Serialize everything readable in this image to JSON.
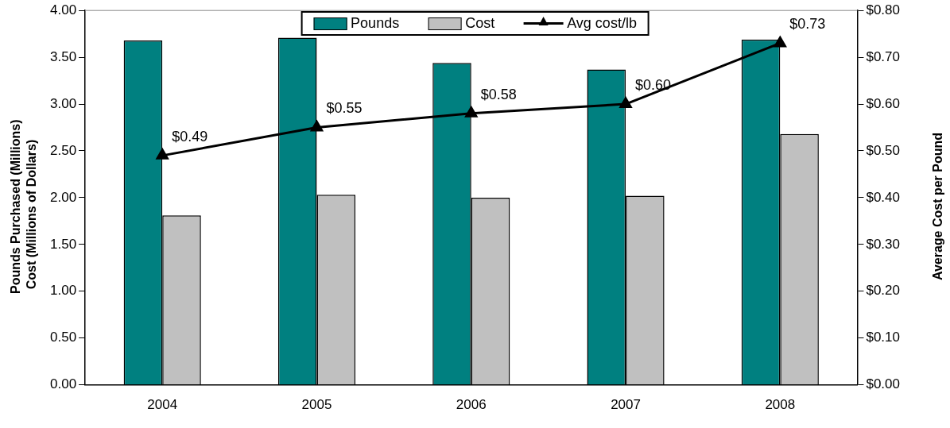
{
  "chart_data": {
    "type": "bar",
    "ylabel": "Pounds Purchased (Millions)\nCost (Millions of Dollars)",
    "y2label": "Average Cost per Pound",
    "categories": [
      "2004",
      "2005",
      "2006",
      "2007",
      "2008"
    ],
    "series": [
      {
        "name": "Pounds",
        "color": "#008080",
        "values": [
          3.68,
          3.71,
          3.44,
          3.37,
          3.69
        ]
      },
      {
        "name": "Cost",
        "color": "#c0c0c0",
        "values": [
          1.81,
          2.03,
          2.0,
          2.02,
          2.68
        ]
      },
      {
        "name": "Avg cost/lb",
        "type": "line",
        "axis": "y2",
        "color": "#000000",
        "values": [
          0.49,
          0.55,
          0.58,
          0.6,
          0.73
        ],
        "value_labels": [
          "$0.49",
          "$0.55",
          "$0.58",
          "$0.60",
          "$0.73"
        ]
      }
    ],
    "ylim": [
      0,
      4
    ],
    "yticks": [
      {
        "value": 0,
        "label": "0.00"
      },
      {
        "value": 0.5,
        "label": "0.50"
      },
      {
        "value": 1,
        "label": "1.00"
      },
      {
        "value": 1.5,
        "label": "1.50"
      },
      {
        "value": 2,
        "label": "2.00"
      },
      {
        "value": 2.5,
        "label": "2.50"
      },
      {
        "value": 3,
        "label": "3.00"
      },
      {
        "value": 3.5,
        "label": "3.50"
      },
      {
        "value": 4,
        "label": "4.00"
      }
    ],
    "y2lim": [
      0,
      0.8
    ],
    "y2ticks": [
      {
        "value": 0,
        "label": "$0.00"
      },
      {
        "value": 0.1,
        "label": "$0.10"
      },
      {
        "value": 0.2,
        "label": "$0.20"
      },
      {
        "value": 0.3,
        "label": "$0.30"
      },
      {
        "value": 0.4,
        "label": "$0.40"
      },
      {
        "value": 0.5,
        "label": "$0.50"
      },
      {
        "value": 0.6,
        "label": "$0.60"
      },
      {
        "value": 0.7,
        "label": "$0.70"
      },
      {
        "value": 0.8,
        "label": "$0.80"
      }
    ],
    "grid": false,
    "legend": "top",
    "marker": "triangle"
  }
}
